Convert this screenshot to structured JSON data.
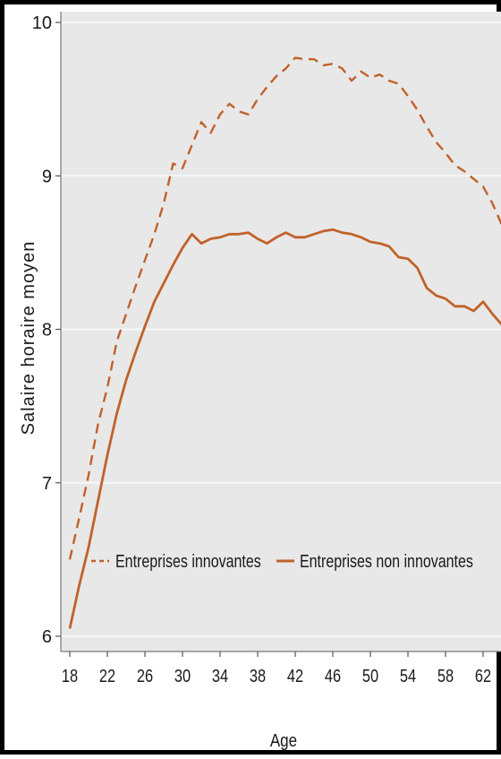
{
  "chart_data": {
    "type": "line",
    "xlabel": "Age",
    "ylabel": "Salaire horaire moyen",
    "xlim": [
      18,
      64
    ],
    "ylim": [
      5.98,
      10.02
    ],
    "xticks": [
      18,
      22,
      26,
      30,
      34,
      38,
      42,
      46,
      50,
      54,
      58,
      62
    ],
    "yticks": [
      6,
      7,
      8,
      9,
      10
    ],
    "grid": true,
    "legend": "inside-bottom",
    "colors": {
      "background": "#e8e8e8",
      "grid": "#f7f7f7",
      "series": "#c0622a"
    },
    "series": [
      {
        "name": "Entreprises innovantes",
        "style": "dashed",
        "x": [
          18,
          19,
          20,
          21,
          22,
          23,
          24,
          25,
          26,
          27,
          28,
          29,
          30,
          31,
          32,
          33,
          34,
          35,
          36,
          37,
          38,
          39,
          40,
          41,
          42,
          43,
          44,
          45,
          46,
          47,
          48,
          49,
          50,
          51,
          52,
          53,
          54,
          55,
          56,
          57,
          58,
          59,
          60,
          61,
          62,
          63,
          64
        ],
        "y": [
          6.5,
          6.77,
          7.05,
          7.38,
          7.62,
          7.92,
          8.1,
          8.28,
          8.45,
          8.62,
          8.82,
          9.08,
          9.05,
          9.2,
          9.35,
          9.28,
          9.4,
          9.47,
          9.42,
          9.4,
          9.5,
          9.58,
          9.65,
          9.7,
          9.77,
          9.76,
          9.76,
          9.72,
          9.73,
          9.7,
          9.62,
          9.68,
          9.64,
          9.66,
          9.62,
          9.6,
          9.52,
          9.43,
          9.32,
          9.22,
          9.15,
          9.07,
          9.03,
          8.98,
          8.93,
          8.82,
          8.68
        ]
      },
      {
        "name": "Entreprises non innovantes",
        "style": "solid",
        "x": [
          18,
          19,
          20,
          21,
          22,
          23,
          24,
          25,
          26,
          27,
          28,
          29,
          30,
          31,
          32,
          33,
          34,
          35,
          36,
          37,
          38,
          39,
          40,
          41,
          42,
          43,
          44,
          45,
          46,
          47,
          48,
          49,
          50,
          51,
          52,
          53,
          54,
          55,
          56,
          57,
          58,
          59,
          60,
          61,
          62,
          63,
          64
        ],
        "y": [
          6.05,
          6.33,
          6.58,
          6.88,
          7.18,
          7.45,
          7.67,
          7.85,
          8.02,
          8.18,
          8.3,
          8.42,
          8.53,
          8.62,
          8.56,
          8.59,
          8.6,
          8.62,
          8.62,
          8.63,
          8.59,
          8.56,
          8.6,
          8.63,
          8.6,
          8.6,
          8.62,
          8.64,
          8.65,
          8.63,
          8.62,
          8.6,
          8.57,
          8.56,
          8.54,
          8.47,
          8.46,
          8.4,
          8.27,
          8.22,
          8.2,
          8.15,
          8.15,
          8.12,
          8.18,
          8.1,
          8.03
        ]
      }
    ]
  }
}
